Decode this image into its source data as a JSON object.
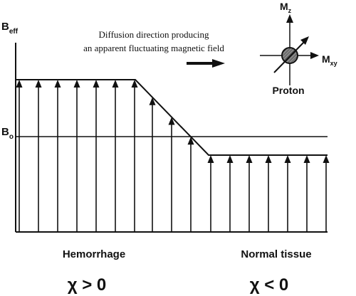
{
  "axis": {
    "y_label_main": "B",
    "y_label_sub": "eff",
    "b0_main": "B",
    "b0_sub": "o"
  },
  "annotation": {
    "line1": "Diffusion direction producing",
    "line2": "an apparent fluctuating magnetic field"
  },
  "proton": {
    "mz_main": "M",
    "mz_sub": "z",
    "mxy_main": "M",
    "mxy_sub": "xy",
    "label": "Proton"
  },
  "regions": {
    "left_label": "Hemorrhage",
    "right_label": "Normal tissue",
    "left_chi": "χ > 0",
    "right_chi": "χ < 0"
  },
  "field_arrows": {
    "left_count": 7,
    "transition_count": 3,
    "right_count": 7
  }
}
